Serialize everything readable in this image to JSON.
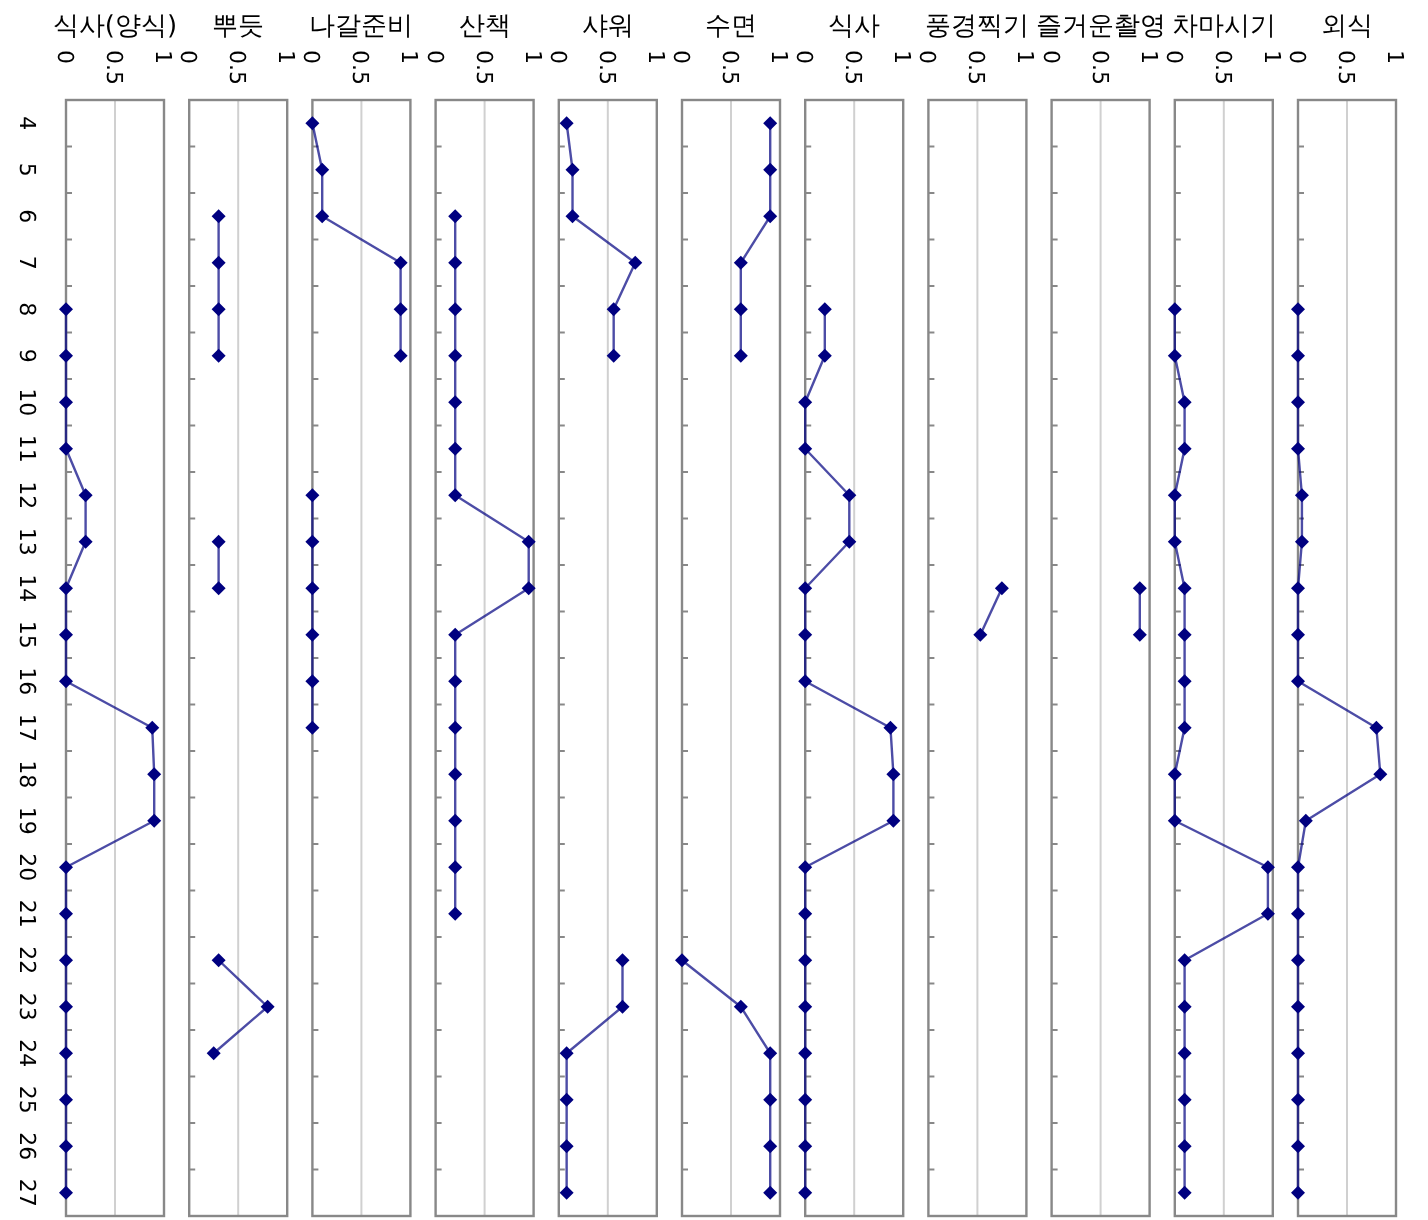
{
  "chart_data": [
    {
      "type": "line",
      "title": "식사(양식)",
      "orientation": "horizontal",
      "categories": [
        "4",
        "5",
        "6",
        "7",
        "8",
        "9",
        "10",
        "11",
        "12",
        "13",
        "14",
        "15",
        "16",
        "17",
        "18",
        "19",
        "20",
        "21",
        "22",
        "23",
        "24",
        "25",
        "26",
        "27"
      ],
      "values": [
        null,
        null,
        null,
        null,
        0,
        0,
        0,
        0,
        0.2,
        0.2,
        0,
        0,
        0,
        0.88,
        0.9,
        0.9,
        0,
        0,
        0,
        0,
        0,
        0,
        0,
        0
      ],
      "color": "#000080",
      "marker": "diamond",
      "xlim": [
        0,
        1
      ],
      "xticks": [
        0,
        0.5,
        1
      ],
      "grid": "x"
    },
    {
      "type": "line",
      "title": "뿌듯",
      "orientation": "horizontal",
      "categories": [
        null,
        null,
        null,
        null,
        null,
        null,
        null,
        null,
        null,
        null,
        null,
        null,
        null,
        null,
        null,
        null,
        null,
        null,
        null,
        null,
        null,
        null,
        null,
        null
      ],
      "values": [
        null,
        null,
        0.3,
        0.3,
        0.3,
        0.3,
        null,
        null,
        null,
        0.3,
        0.3,
        null,
        null,
        null,
        null,
        null,
        null,
        null,
        0.3,
        0.8,
        0.25,
        null,
        null,
        null
      ],
      "color": "#000080",
      "marker": "diamond",
      "xlim": [
        0,
        1
      ],
      "xticks": [
        0,
        0.5,
        1
      ],
      "grid": "x",
      "tick_labels": "x"
    },
    {
      "type": "line",
      "title": "나갈준비",
      "orientation": "horizontal",
      "categories": [
        null,
        null,
        null,
        null,
        null,
        null,
        null,
        null,
        null,
        null,
        null,
        null,
        null,
        null,
        null,
        null,
        null,
        null,
        null,
        null,
        null,
        null,
        null,
        null
      ],
      "values": [
        0,
        0.1,
        0.1,
        0.9,
        0.9,
        0.9,
        null,
        null,
        0,
        0,
        0,
        0,
        0,
        0,
        null,
        null,
        null,
        null,
        null,
        null,
        null,
        null,
        null,
        null
      ],
      "color": "#000080",
      "marker": "diamond",
      "xlim": [
        0,
        1
      ],
      "xticks": [
        0,
        0.5,
        1
      ],
      "grid": "x",
      "tick_labels": "x"
    },
    {
      "type": "line",
      "title": "산책",
      "orientation": "horizontal",
      "categories": [
        null,
        null,
        null,
        null,
        null,
        null,
        null,
        null,
        null,
        null,
        null,
        null,
        null,
        null,
        null,
        null,
        null,
        null,
        null,
        null,
        null,
        null,
        null,
        null
      ],
      "values": [
        null,
        null,
        0.2,
        0.2,
        0.2,
        0.2,
        0.2,
        0.2,
        0.2,
        0.95,
        0.95,
        0.2,
        0.2,
        0.2,
        0.2,
        0.2,
        0.2,
        0.2,
        null,
        null,
        null,
        null,
        null,
        null
      ],
      "color": "#000080",
      "marker": "diamond",
      "xlim": [
        0,
        1
      ],
      "xticks": [
        0,
        0.5,
        1
      ],
      "grid": "x",
      "tick_labels": "x"
    },
    {
      "type": "line",
      "title": "샤워",
      "orientation": "horizontal",
      "categories": [
        null,
        null,
        null,
        null,
        null,
        null,
        null,
        null,
        null,
        null,
        null,
        null,
        null,
        null,
        null,
        null,
        null,
        null,
        null,
        null,
        null,
        null,
        null,
        null
      ],
      "values": [
        0.08,
        0.14,
        0.14,
        0.78,
        0.56,
        0.56,
        null,
        null,
        null,
        null,
        null,
        null,
        null,
        null,
        null,
        null,
        null,
        null,
        0.65,
        0.65,
        0.08,
        0.08,
        0.08,
        0.08
      ],
      "color": "#000080",
      "marker": "diamond",
      "xlim": [
        0,
        1
      ],
      "xticks": [
        0,
        0.5,
        1
      ],
      "grid": "x",
      "tick_labels": "x"
    },
    {
      "type": "line",
      "title": "수면",
      "orientation": "horizontal",
      "categories": [
        null,
        null,
        null,
        null,
        null,
        null,
        null,
        null,
        null,
        null,
        null,
        null,
        null,
        null,
        null,
        null,
        null,
        null,
        null,
        null,
        null,
        null,
        null,
        null
      ],
      "values": [
        0.9,
        0.9,
        0.9,
        0.6,
        0.6,
        0.6,
        null,
        null,
        null,
        null,
        null,
        null,
        null,
        null,
        null,
        null,
        null,
        null,
        0,
        0.6,
        0.9,
        0.9,
        0.9,
        0.9
      ],
      "color": "#000080",
      "marker": "diamond",
      "xlim": [
        0,
        1
      ],
      "xticks": [
        0,
        0.5,
        1
      ],
      "grid": "x",
      "tick_labels": "x"
    },
    {
      "type": "line",
      "title": "식사",
      "orientation": "horizontal",
      "categories": [
        null,
        null,
        null,
        null,
        null,
        null,
        null,
        null,
        null,
        null,
        null,
        null,
        null,
        null,
        null,
        null,
        null,
        null,
        null,
        null,
        null,
        null,
        null,
        null
      ],
      "values": [
        null,
        null,
        null,
        null,
        0.2,
        0.2,
        0,
        0,
        0.45,
        0.45,
        0,
        0,
        0,
        0.87,
        0.9,
        0.9,
        0,
        0,
        0,
        0,
        0,
        0,
        0,
        0
      ],
      "color": "#000080",
      "marker": "diamond",
      "xlim": [
        0,
        1
      ],
      "xticks": [
        0,
        0.5,
        1
      ],
      "grid": "x",
      "tick_labels": "x"
    },
    {
      "type": "line",
      "title": "풍경찍기",
      "orientation": "horizontal",
      "categories": [
        null,
        null,
        null,
        null,
        null,
        null,
        null,
        null,
        null,
        null,
        null,
        null,
        null,
        null,
        null,
        null,
        null,
        null,
        null,
        null,
        null,
        null,
        null,
        null
      ],
      "values": [
        null,
        null,
        null,
        null,
        null,
        null,
        null,
        null,
        null,
        null,
        0.75,
        0.53,
        null,
        null,
        null,
        null,
        null,
        null,
        null,
        null,
        null,
        null,
        null,
        null
      ],
      "color": "#000080",
      "marker": "diamond",
      "xlim": [
        0,
        1
      ],
      "xticks": [
        0,
        0.5,
        1
      ],
      "grid": "x",
      "tick_labels": "x"
    },
    {
      "type": "line",
      "title": "즐거운촬영",
      "orientation": "horizontal",
      "categories": [
        null,
        null,
        null,
        null,
        null,
        null,
        null,
        null,
        null,
        null,
        null,
        null,
        null,
        null,
        null,
        null,
        null,
        null,
        null,
        null,
        null,
        null,
        null,
        null
      ],
      "values": [
        null,
        null,
        null,
        null,
        null,
        null,
        null,
        null,
        null,
        null,
        0.9,
        0.9,
        null,
        null,
        null,
        null,
        null,
        null,
        null,
        null,
        null,
        null,
        null,
        null
      ],
      "color": "#000080",
      "marker": "diamond",
      "xlim": [
        0,
        1
      ],
      "xticks": [
        0,
        0.5,
        1
      ],
      "grid": "x",
      "tick_labels": "x"
    },
    {
      "type": "line",
      "title": "차마시기",
      "orientation": "horizontal",
      "categories": [
        null,
        null,
        null,
        null,
        null,
        null,
        null,
        null,
        null,
        null,
        null,
        null,
        null,
        null,
        null,
        null,
        null,
        null,
        null,
        null,
        null,
        null,
        null,
        null
      ],
      "values": [
        null,
        null,
        null,
        null,
        0,
        0,
        0.1,
        0.1,
        0,
        0,
        0.1,
        0.1,
        0.1,
        0.1,
        0,
        0,
        0.95,
        0.95,
        0.1,
        0.1,
        0.1,
        0.1,
        0.1,
        0.1
      ],
      "color": "#000080",
      "marker": "diamond",
      "xlim": [
        0,
        1
      ],
      "xticks": [
        0,
        0.5,
        1
      ],
      "grid": "x",
      "tick_labels": "x"
    },
    {
      "type": "line",
      "title": "외식",
      "orientation": "horizontal",
      "categories": [
        null,
        null,
        null,
        null,
        null,
        null,
        null,
        null,
        null,
        null,
        null,
        null,
        null,
        null,
        null,
        null,
        null,
        null,
        null,
        null,
        null,
        null,
        null,
        null
      ],
      "values": [
        null,
        null,
        null,
        null,
        0,
        0,
        0,
        0,
        0.04,
        0.04,
        0,
        0,
        0,
        0.8,
        0.84,
        0.08,
        0,
        0,
        0,
        0,
        0,
        0,
        0,
        0
      ],
      "color": "#000080",
      "marker": "diamond",
      "xlim": [
        0,
        1
      ],
      "xticks": [
        0,
        0.5,
        1
      ],
      "grid": "x",
      "tick_labels": "x"
    }
  ]
}
